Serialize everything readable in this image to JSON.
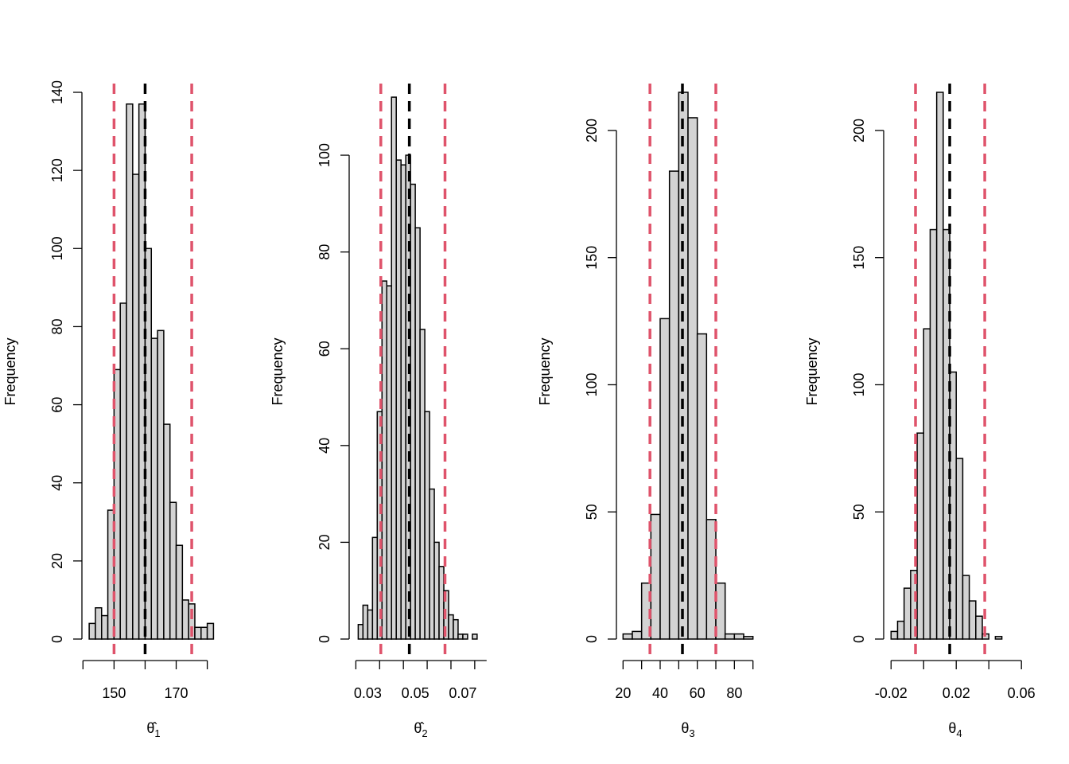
{
  "colors": {
    "bar_fill": "#d3d3d3",
    "bar_stroke": "#000000",
    "ci_line": "#df536b",
    "center_line": "#000000"
  },
  "chart_data": [
    {
      "type": "bar",
      "subtype": "histogram",
      "ylabel": "Frequency",
      "xlabel": "θ̂",
      "xlabel_sub": "1",
      "x_ticks": [
        150,
        170
      ],
      "x_tick_labels": [
        "150",
        "170"
      ],
      "x_axis_range": [
        140,
        180
      ],
      "xlim": [
        141.2,
        184.2
      ],
      "y_ticks": [
        0,
        20,
        40,
        60,
        80,
        100,
        120,
        140
      ],
      "y_tick_labels": [
        "0",
        "20",
        "40",
        "60",
        "80",
        "100",
        "120",
        "140"
      ],
      "ylim": [
        0,
        140
      ],
      "bin_start": 142,
      "bin_width": 2,
      "values": [
        4,
        8,
        6,
        33,
        69,
        86,
        137,
        119,
        137,
        100,
        77,
        79,
        55,
        35,
        24,
        10,
        9,
        3,
        3,
        4
      ],
      "ci_lower": 150,
      "ci_upper": 175,
      "center": 160
    },
    {
      "type": "bar",
      "subtype": "histogram",
      "ylabel": "Frequency",
      "xlabel": "θ̂",
      "xlabel_sub": "2",
      "x_ticks": [
        0.03,
        0.05,
        0.07
      ],
      "x_tick_labels": [
        "0.03",
        "0.05",
        "0.07"
      ],
      "x_axis_range": [
        0.025,
        0.08
      ],
      "xlim": [
        0.0242,
        0.0804
      ],
      "y_ticks": [
        0,
        20,
        40,
        60,
        80,
        100
      ],
      "y_tick_labels": [
        "0",
        "20",
        "40",
        "60",
        "80",
        "100"
      ],
      "ylim": [
        0,
        113
      ],
      "bin_start": 0.026,
      "bin_width": 0.002,
      "values": [
        3,
        7,
        6,
        21,
        47,
        74,
        73,
        112,
        99,
        98,
        100,
        94,
        85,
        64,
        47,
        31,
        20,
        15,
        10,
        5,
        4,
        1,
        1,
        0,
        1
      ],
      "ci_lower": 0.0355,
      "ci_upper": 0.0625,
      "center": 0.0475
    },
    {
      "type": "bar",
      "subtype": "histogram",
      "ylabel": "Frequency",
      "xlabel": "θ",
      "xlabel_sub": "3",
      "x_ticks": [
        20,
        40,
        60,
        80
      ],
      "x_tick_labels": [
        "20",
        "40",
        "60",
        "80"
      ],
      "x_axis_range": [
        20,
        90
      ],
      "xlim": [
        19,
        91
      ],
      "y_ticks": [
        0,
        50,
        100,
        150,
        200
      ],
      "y_tick_labels": [
        "0",
        "50",
        "100",
        "150",
        "200"
      ],
      "ylim": [
        0,
        215
      ],
      "bin_start": 20,
      "bin_width": 5,
      "values": [
        2,
        3,
        22,
        49,
        126,
        184,
        215,
        205,
        120,
        47,
        22,
        2,
        2,
        1
      ],
      "ci_lower": 34.5,
      "ci_upper": 70,
      "center": 52
    },
    {
      "type": "bar",
      "subtype": "histogram",
      "ylabel": "Frequency",
      "xlabel": "θ",
      "xlabel_sub": "4",
      "x_ticks": [
        -0.02,
        0.02,
        0.06
      ],
      "x_tick_labels": [
        "-0.02",
        "0.02",
        "0.06"
      ],
      "x_axis_range": [
        -0.02,
        0.06
      ],
      "xlim": [
        -0.0216,
        0.0604
      ],
      "y_ticks": [
        0,
        50,
        100,
        150,
        200
      ],
      "y_tick_labels": [
        "0",
        "50",
        "100",
        "150",
        "200"
      ],
      "ylim": [
        0,
        215
      ],
      "bin_start": -0.02,
      "bin_width": 0.004,
      "values": [
        3,
        7,
        20,
        27,
        81,
        122,
        161,
        215,
        161,
        105,
        71,
        25,
        15,
        9,
        2,
        0,
        1
      ],
      "ci_lower": -0.005,
      "ci_upper": 0.0375,
      "center": 0.016
    }
  ]
}
